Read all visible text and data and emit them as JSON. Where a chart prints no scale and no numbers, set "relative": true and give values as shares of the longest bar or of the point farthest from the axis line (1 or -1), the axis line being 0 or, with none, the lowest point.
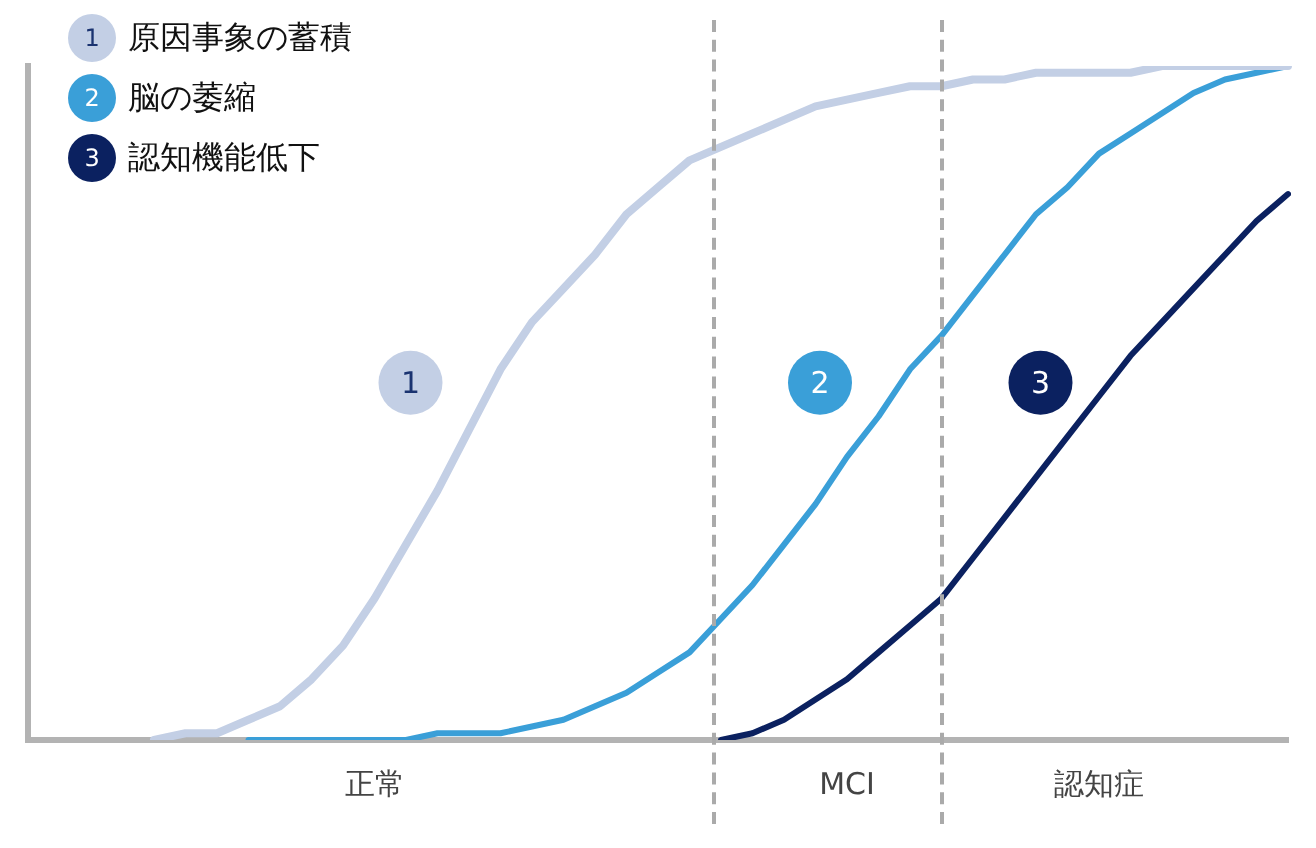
{
  "chart_data": {
    "type": "line",
    "relative": true,
    "legend": "top left",
    "marker": "none",
    "line_style": "solid",
    "categories": [
      null,
      null,
      null,
      null,
      null,
      null,
      null,
      null,
      null,
      null,
      null,
      "正常",
      null,
      null,
      null,
      null,
      null,
      null,
      null,
      null,
      null,
      null,
      null,
      null,
      null,
      null,
      "MCI",
      null,
      null,
      null,
      null,
      null,
      null,
      null,
      "認知症",
      null,
      null,
      null,
      null,
      null,
      null
    ],
    "series": [
      {
        "name": "原因事象の蓄積",
        "color": "#c3cfe5",
        "values": [
          null,
          null,
          null,
          null,
          0,
          0.01,
          0.01,
          0.03,
          0.05,
          0.09,
          0.14,
          0.21,
          0.29,
          0.37,
          0.46,
          0.55,
          0.62,
          0.67,
          0.72,
          0.78,
          0.82,
          0.86,
          0.88,
          0.9,
          0.92,
          0.94,
          0.95,
          0.96,
          0.97,
          0.97,
          0.98,
          0.98,
          0.99,
          0.99,
          0.99,
          0.99,
          1,
          1,
          1,
          1,
          1
        ]
      },
      {
        "name": "脳の萎縮",
        "color": "#3a9fd8",
        "values": [
          null,
          null,
          null,
          null,
          null,
          null,
          null,
          0,
          0,
          0,
          0,
          0,
          0,
          0.01,
          0.01,
          0.01,
          0.02,
          0.03,
          0.05,
          0.07,
          0.1,
          0.13,
          0.18,
          0.23,
          0.29,
          0.35,
          0.42,
          0.48,
          0.55,
          0.6,
          0.66,
          0.72,
          0.78,
          0.82,
          0.87,
          0.9,
          0.93,
          0.96,
          0.98,
          0.99,
          1
        ]
      },
      {
        "name": "認知機能低下",
        "color": "#0b2160",
        "values": [
          null,
          null,
          null,
          null,
          null,
          null,
          null,
          null,
          null,
          null,
          null,
          null,
          null,
          null,
          null,
          null,
          null,
          null,
          null,
          null,
          null,
          null,
          0,
          0.01,
          0.03,
          0.06,
          0.09,
          0.13,
          0.17,
          0.21,
          0.27,
          0.33,
          0.39,
          0.45,
          0.51,
          0.57,
          0.62,
          0.67,
          0.72,
          0.77,
          0.81
        ]
      }
    ],
    "annotations": [
      "1",
      "2",
      "3"
    ]
  }
}
